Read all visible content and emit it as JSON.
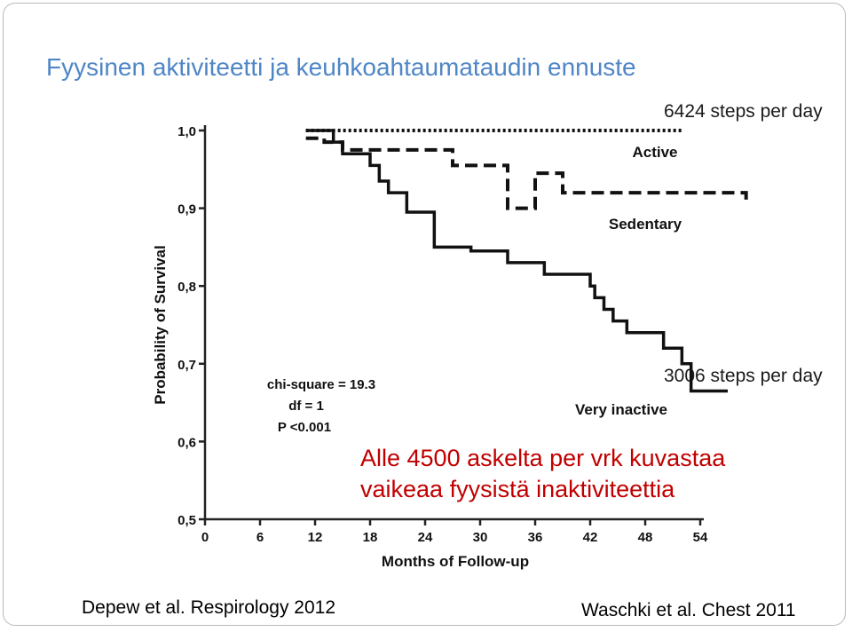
{
  "slide": {
    "title": "Fyysinen aktiviteetti ja keuhkoahtaumataudin ennuste",
    "note_high": "6424 steps per day",
    "note_low": "3006 steps per day",
    "red_text_1": "Alle 4500 askelta per vrk kuvastaa",
    "red_text_2": "vaikeaa fyysistä inaktiviteettia",
    "cite_left": "Depew et al. Respirology 2012",
    "cite_right": "Waschki et al. Chest 2011"
  },
  "chart_data": {
    "type": "line",
    "title": "",
    "xlabel": "Months of Follow-up",
    "ylabel": "Probability of Survival",
    "xlim": [
      0,
      54
    ],
    "ylim": [
      0.5,
      1.0
    ],
    "x_ticks": [
      0,
      6,
      12,
      18,
      24,
      30,
      36,
      42,
      48,
      54
    ],
    "y_ticks": [
      0.5,
      0.6,
      0.7,
      0.8,
      0.9,
      1.0
    ],
    "y_tick_labels": [
      "0,5",
      "0,6",
      "0,7",
      "0,8",
      "0,9",
      "1,0"
    ],
    "grid": false,
    "stats": [
      "chi-square = 19.3",
      "df = 1",
      "P <0.001"
    ],
    "series": [
      {
        "name": "Active",
        "style": "dotted",
        "points": [
          [
            11,
            1.0
          ],
          [
            52,
            1.0
          ]
        ]
      },
      {
        "name": "Sedentary",
        "style": "dashed",
        "points": [
          [
            11,
            0.99
          ],
          [
            13,
            0.985
          ],
          [
            15,
            0.975
          ],
          [
            27,
            0.955
          ],
          [
            33,
            0.9
          ],
          [
            36,
            0.945
          ],
          [
            39,
            0.92
          ],
          [
            59,
            0.91
          ]
        ]
      },
      {
        "name": "Very inactive",
        "style": "solid",
        "points": [
          [
            11,
            1.0
          ],
          [
            14,
            0.985
          ],
          [
            15,
            0.97
          ],
          [
            18,
            0.955
          ],
          [
            19,
            0.935
          ],
          [
            20,
            0.92
          ],
          [
            22,
            0.895
          ],
          [
            25,
            0.85
          ],
          [
            29,
            0.845
          ],
          [
            33,
            0.83
          ],
          [
            37,
            0.815
          ],
          [
            42,
            0.8
          ],
          [
            42.5,
            0.785
          ],
          [
            43.5,
            0.77
          ],
          [
            44.5,
            0.755
          ],
          [
            46,
            0.74
          ],
          [
            50,
            0.72
          ],
          [
            52,
            0.7
          ],
          [
            53,
            0.665
          ],
          [
            57,
            0.665
          ]
        ]
      }
    ]
  }
}
